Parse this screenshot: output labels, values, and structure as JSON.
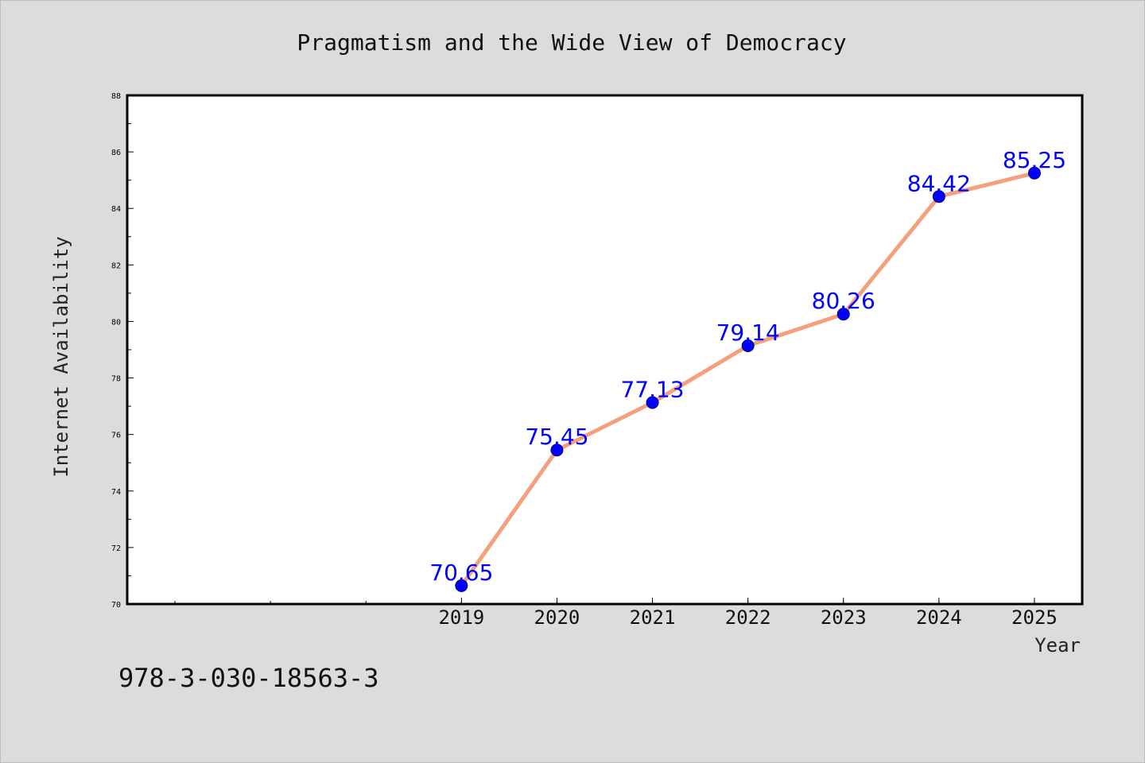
{
  "page": {
    "background": "#dcdcdc",
    "isbn": "978-3-030-18563-3"
  },
  "chart_data": {
    "type": "line",
    "title": "Pragmatism and the Wide View of Democracy",
    "xlabel": "Year",
    "ylabel": "Internet Availability",
    "x": [
      2019,
      2020,
      2021,
      2022,
      2023,
      2024,
      2025
    ],
    "y": [
      70.65,
      75.45,
      77.13,
      79.14,
      80.26,
      84.42,
      85.25
    ],
    "data_labels": [
      "70.65",
      "75.45",
      "77.13",
      "79.14",
      "80.26",
      "84.42",
      "85.25"
    ],
    "xlim": [
      2015.5,
      2025.5
    ],
    "ylim": [
      70,
      88
    ],
    "yticks": [
      70,
      72,
      74,
      76,
      78,
      80,
      82,
      84,
      86,
      88
    ],
    "xtick_labels": [
      "2019",
      "2020",
      "2021",
      "2022",
      "2023",
      "2024",
      "2025"
    ],
    "grid": false,
    "legend": "none",
    "line_color": "#f4a07e",
    "marker_color": "#0000ff",
    "label_color": "#0000ff",
    "plot_background": "#ffffff"
  }
}
